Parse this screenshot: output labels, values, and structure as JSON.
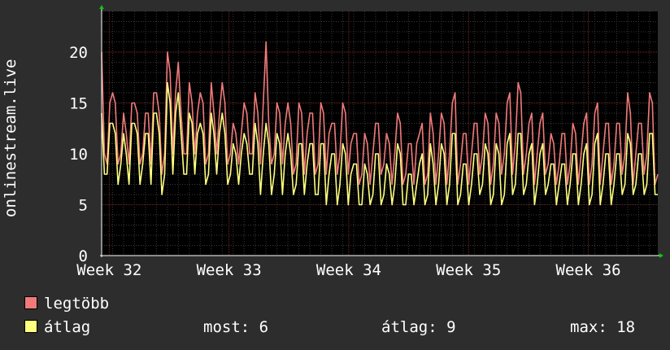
{
  "chart_data": {
    "type": "line",
    "ylabel": "onlinestream.live",
    "xlabel": "",
    "ylim": [
      0,
      24
    ],
    "yticks": [
      0,
      5,
      10,
      15,
      20
    ],
    "xticks": [
      "Week 32",
      "Week 33",
      "Week 34",
      "Week 35",
      "Week 36"
    ],
    "grid": true,
    "series": [
      {
        "name": "legtöbb",
        "color": "#f07a7a",
        "points_per_day": 4,
        "values": [
          20,
          10,
          9,
          15,
          16,
          15,
          9,
          10,
          14,
          12,
          9,
          15,
          15,
          14,
          9,
          10,
          14,
          14,
          9,
          16,
          16,
          14,
          8,
          10,
          20,
          18,
          10,
          16,
          19,
          14,
          10,
          10,
          17,
          15,
          10,
          14,
          16,
          15,
          9,
          10,
          17,
          14,
          10,
          14,
          17,
          15,
          9,
          10,
          13,
          12,
          9,
          12,
          15,
          14,
          10,
          10,
          16,
          14,
          9,
          15,
          21,
          13,
          9,
          10,
          15,
          14,
          9,
          13,
          15,
          13,
          8,
          9,
          15,
          14,
          8,
          12,
          14,
          14,
          8,
          9,
          15,
          14,
          8,
          12,
          13,
          13,
          8,
          10,
          15,
          14,
          8,
          11,
          12,
          12,
          7,
          8,
          12,
          11,
          7,
          10,
          13,
          13,
          8,
          9,
          12,
          11,
          7,
          10,
          14,
          13,
          7,
          8,
          11,
          11,
          7,
          11,
          12,
          13,
          7,
          8,
          14,
          12,
          7,
          10,
          14,
          13,
          7,
          10,
          15,
          16,
          7,
          9,
          12,
          12,
          7,
          10,
          13,
          13,
          8,
          10,
          14,
          13,
          7,
          9,
          14,
          13,
          8,
          10,
          15,
          16,
          8,
          11,
          17,
          16,
          8,
          10,
          13,
          14,
          7,
          10,
          13,
          14,
          8,
          9,
          12,
          11,
          7,
          9,
          12,
          12,
          7,
          9,
          13,
          12,
          7,
          10,
          13,
          14,
          7,
          9,
          14,
          15,
          7,
          10,
          13,
          13,
          7,
          9,
          13,
          13,
          8,
          10,
          16,
          14,
          7,
          10,
          13,
          13,
          8,
          10,
          16,
          15,
          7,
          8
        ]
      },
      {
        "name": "átlag",
        "color": "#ffff80",
        "points_per_day": 4,
        "values": [
          14,
          8,
          8,
          13,
          13,
          12,
          7,
          9,
          12,
          10,
          7,
          13,
          13,
          12,
          7,
          9,
          12,
          12,
          7,
          14,
          14,
          12,
          6,
          8,
          17,
          15,
          8,
          14,
          16,
          12,
          8,
          8,
          14,
          13,
          8,
          12,
          13,
          12,
          7,
          8,
          14,
          12,
          8,
          12,
          14,
          12,
          7,
          8,
          11,
          10,
          7,
          10,
          12,
          11,
          8,
          8,
          13,
          11,
          6,
          10,
          13,
          11,
          6,
          8,
          12,
          11,
          6,
          10,
          12,
          10,
          6,
          7,
          11,
          11,
          6,
          9,
          11,
          11,
          6,
          6,
          11,
          11,
          5,
          8,
          10,
          10,
          5,
          7,
          11,
          10,
          5,
          8,
          9,
          9,
          5,
          5,
          9,
          8,
          5,
          6,
          10,
          10,
          5,
          6,
          9,
          8,
          5,
          7,
          11,
          10,
          5,
          5,
          8,
          8,
          5,
          7,
          9,
          10,
          5,
          6,
          11,
          9,
          5,
          7,
          11,
          10,
          5,
          7,
          12,
          12,
          5,
          6,
          9,
          9,
          5,
          7,
          10,
          10,
          6,
          7,
          11,
          10,
          5,
          6,
          11,
          10,
          5,
          6,
          11,
          12,
          6,
          7,
          12,
          12,
          6,
          7,
          10,
          11,
          5,
          7,
          10,
          11,
          6,
          7,
          9,
          9,
          5,
          7,
          9,
          9,
          5,
          7,
          10,
          10,
          5,
          7,
          10,
          11,
          5,
          6,
          11,
          12,
          5,
          7,
          10,
          10,
          5,
          7,
          10,
          10,
          6,
          7,
          12,
          11,
          6,
          7,
          10,
          10,
          6,
          7,
          12,
          12,
          6,
          6
        ]
      }
    ]
  },
  "legend": {
    "max_label": "legtöbb",
    "avg_label": "átlag",
    "stats": {
      "now": "most: 6",
      "avg": "átlag: 9",
      "max": "max: 18"
    }
  }
}
